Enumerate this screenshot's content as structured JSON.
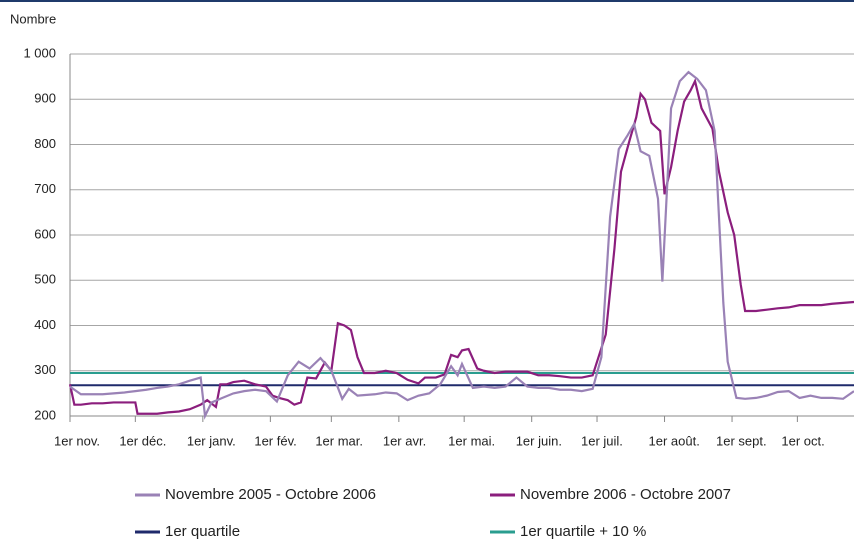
{
  "chart_data": {
    "type": "line",
    "y_label": "Nombre",
    "xlim": [
      0,
      360
    ],
    "xticks": [
      {
        "value": 0,
        "label": "1er nov."
      },
      {
        "value": 30,
        "label": "1er déc."
      },
      {
        "value": 61,
        "label": "1er janv."
      },
      {
        "value": 92,
        "label": "1er fév."
      },
      {
        "value": 120,
        "label": "1er mar."
      },
      {
        "value": 151,
        "label": "1er avr."
      },
      {
        "value": 181,
        "label": "1er mai."
      },
      {
        "value": 212,
        "label": "1er juin."
      },
      {
        "value": 242,
        "label": "1er juil."
      },
      {
        "value": 273,
        "label": "1er août."
      },
      {
        "value": 304,
        "label": "1er sept."
      },
      {
        "value": 334,
        "label": "1er oct."
      }
    ],
    "ylim": [
      200,
      1000
    ],
    "yticks": [
      200,
      300,
      400,
      500,
      600,
      700,
      800,
      900,
      {
        "value": 1000,
        "label": "1 000"
      }
    ],
    "grid": true,
    "legend": "bottom",
    "series": [
      {
        "name": "Novembre 2005 - Octobre 2006",
        "color": "#9a82b6",
        "x": [
          0,
          5,
          10,
          15,
          20,
          25,
          30,
          35,
          40,
          45,
          50,
          55,
          60,
          62,
          65,
          70,
          75,
          80,
          85,
          90,
          95,
          100,
          105,
          110,
          115,
          120,
          125,
          128,
          132,
          140,
          145,
          150,
          155,
          160,
          165,
          170,
          175,
          178,
          180,
          185,
          190,
          195,
          200,
          205,
          210,
          215,
          220,
          225,
          230,
          235,
          240,
          244,
          248,
          252,
          256,
          259,
          262,
          266,
          270,
          272,
          276,
          280,
          284,
          288,
          292,
          296,
          300,
          302,
          306,
          310,
          315,
          320,
          325,
          330,
          335,
          340,
          345,
          350,
          355,
          360
        ],
        "values": [
          265,
          248,
          248,
          248,
          250,
          252,
          255,
          258,
          262,
          265,
          270,
          278,
          285,
          200,
          230,
          240,
          250,
          255,
          258,
          255,
          232,
          290,
          320,
          305,
          328,
          300,
          238,
          260,
          245,
          248,
          252,
          250,
          235,
          245,
          250,
          270,
          310,
          290,
          315,
          262,
          265,
          262,
          265,
          285,
          265,
          262,
          262,
          258,
          258,
          255,
          260,
          330,
          640,
          790,
          820,
          845,
          785,
          775,
          680,
          497,
          880,
          940,
          960,
          945,
          920,
          830,
          450,
          320,
          240,
          238,
          240,
          245,
          253,
          255,
          240,
          245,
          240,
          240,
          238,
          255
        ]
      },
      {
        "name": "Novembre 2006 - Octobre 2007",
        "color": "#8b1e7d",
        "x": [
          0,
          2,
          5,
          10,
          15,
          20,
          25,
          30,
          31,
          35,
          40,
          45,
          50,
          55,
          60,
          63,
          67,
          69,
          72,
          75,
          80,
          85,
          90,
          93,
          96,
          100,
          103,
          106,
          109,
          113,
          117,
          120,
          123,
          126,
          129,
          132,
          135,
          140,
          145,
          150,
          155,
          160,
          163,
          168,
          172,
          175,
          178,
          180,
          183,
          187,
          190,
          195,
          200,
          205,
          210,
          215,
          220,
          225,
          230,
          235,
          240,
          243,
          246,
          250,
          253,
          257,
          260,
          262,
          264,
          267,
          271,
          273,
          276,
          279,
          282,
          285,
          287,
          290,
          295,
          298,
          302,
          305,
          308,
          310,
          315,
          320,
          325,
          330,
          335,
          340,
          345,
          350,
          355,
          360
        ],
        "values": [
          270,
          225,
          225,
          228,
          228,
          230,
          230,
          230,
          205,
          205,
          205,
          208,
          210,
          215,
          225,
          235,
          220,
          270,
          270,
          275,
          278,
          270,
          265,
          245,
          240,
          235,
          225,
          230,
          285,
          283,
          318,
          300,
          405,
          400,
          390,
          330,
          295,
          295,
          300,
          295,
          280,
          272,
          285,
          285,
          292,
          335,
          330,
          345,
          348,
          305,
          300,
          295,
          298,
          298,
          298,
          290,
          290,
          288,
          285,
          285,
          290,
          335,
          380,
          570,
          740,
          810,
          860,
          912,
          900,
          848,
          830,
          690,
          750,
          830,
          895,
          920,
          940,
          880,
          835,
          740,
          650,
          600,
          490,
          432,
          432,
          435,
          438,
          440,
          445,
          445,
          445,
          448,
          450,
          452
        ]
      },
      {
        "name": "1er quartile",
        "color": "#1f2a6b",
        "x": [
          0,
          360
        ],
        "values": [
          268,
          268
        ]
      },
      {
        "name": "1er quartile + 10 %",
        "color": "#2a9d8f",
        "x": [
          0,
          360
        ],
        "values": [
          295,
          295
        ]
      }
    ]
  }
}
